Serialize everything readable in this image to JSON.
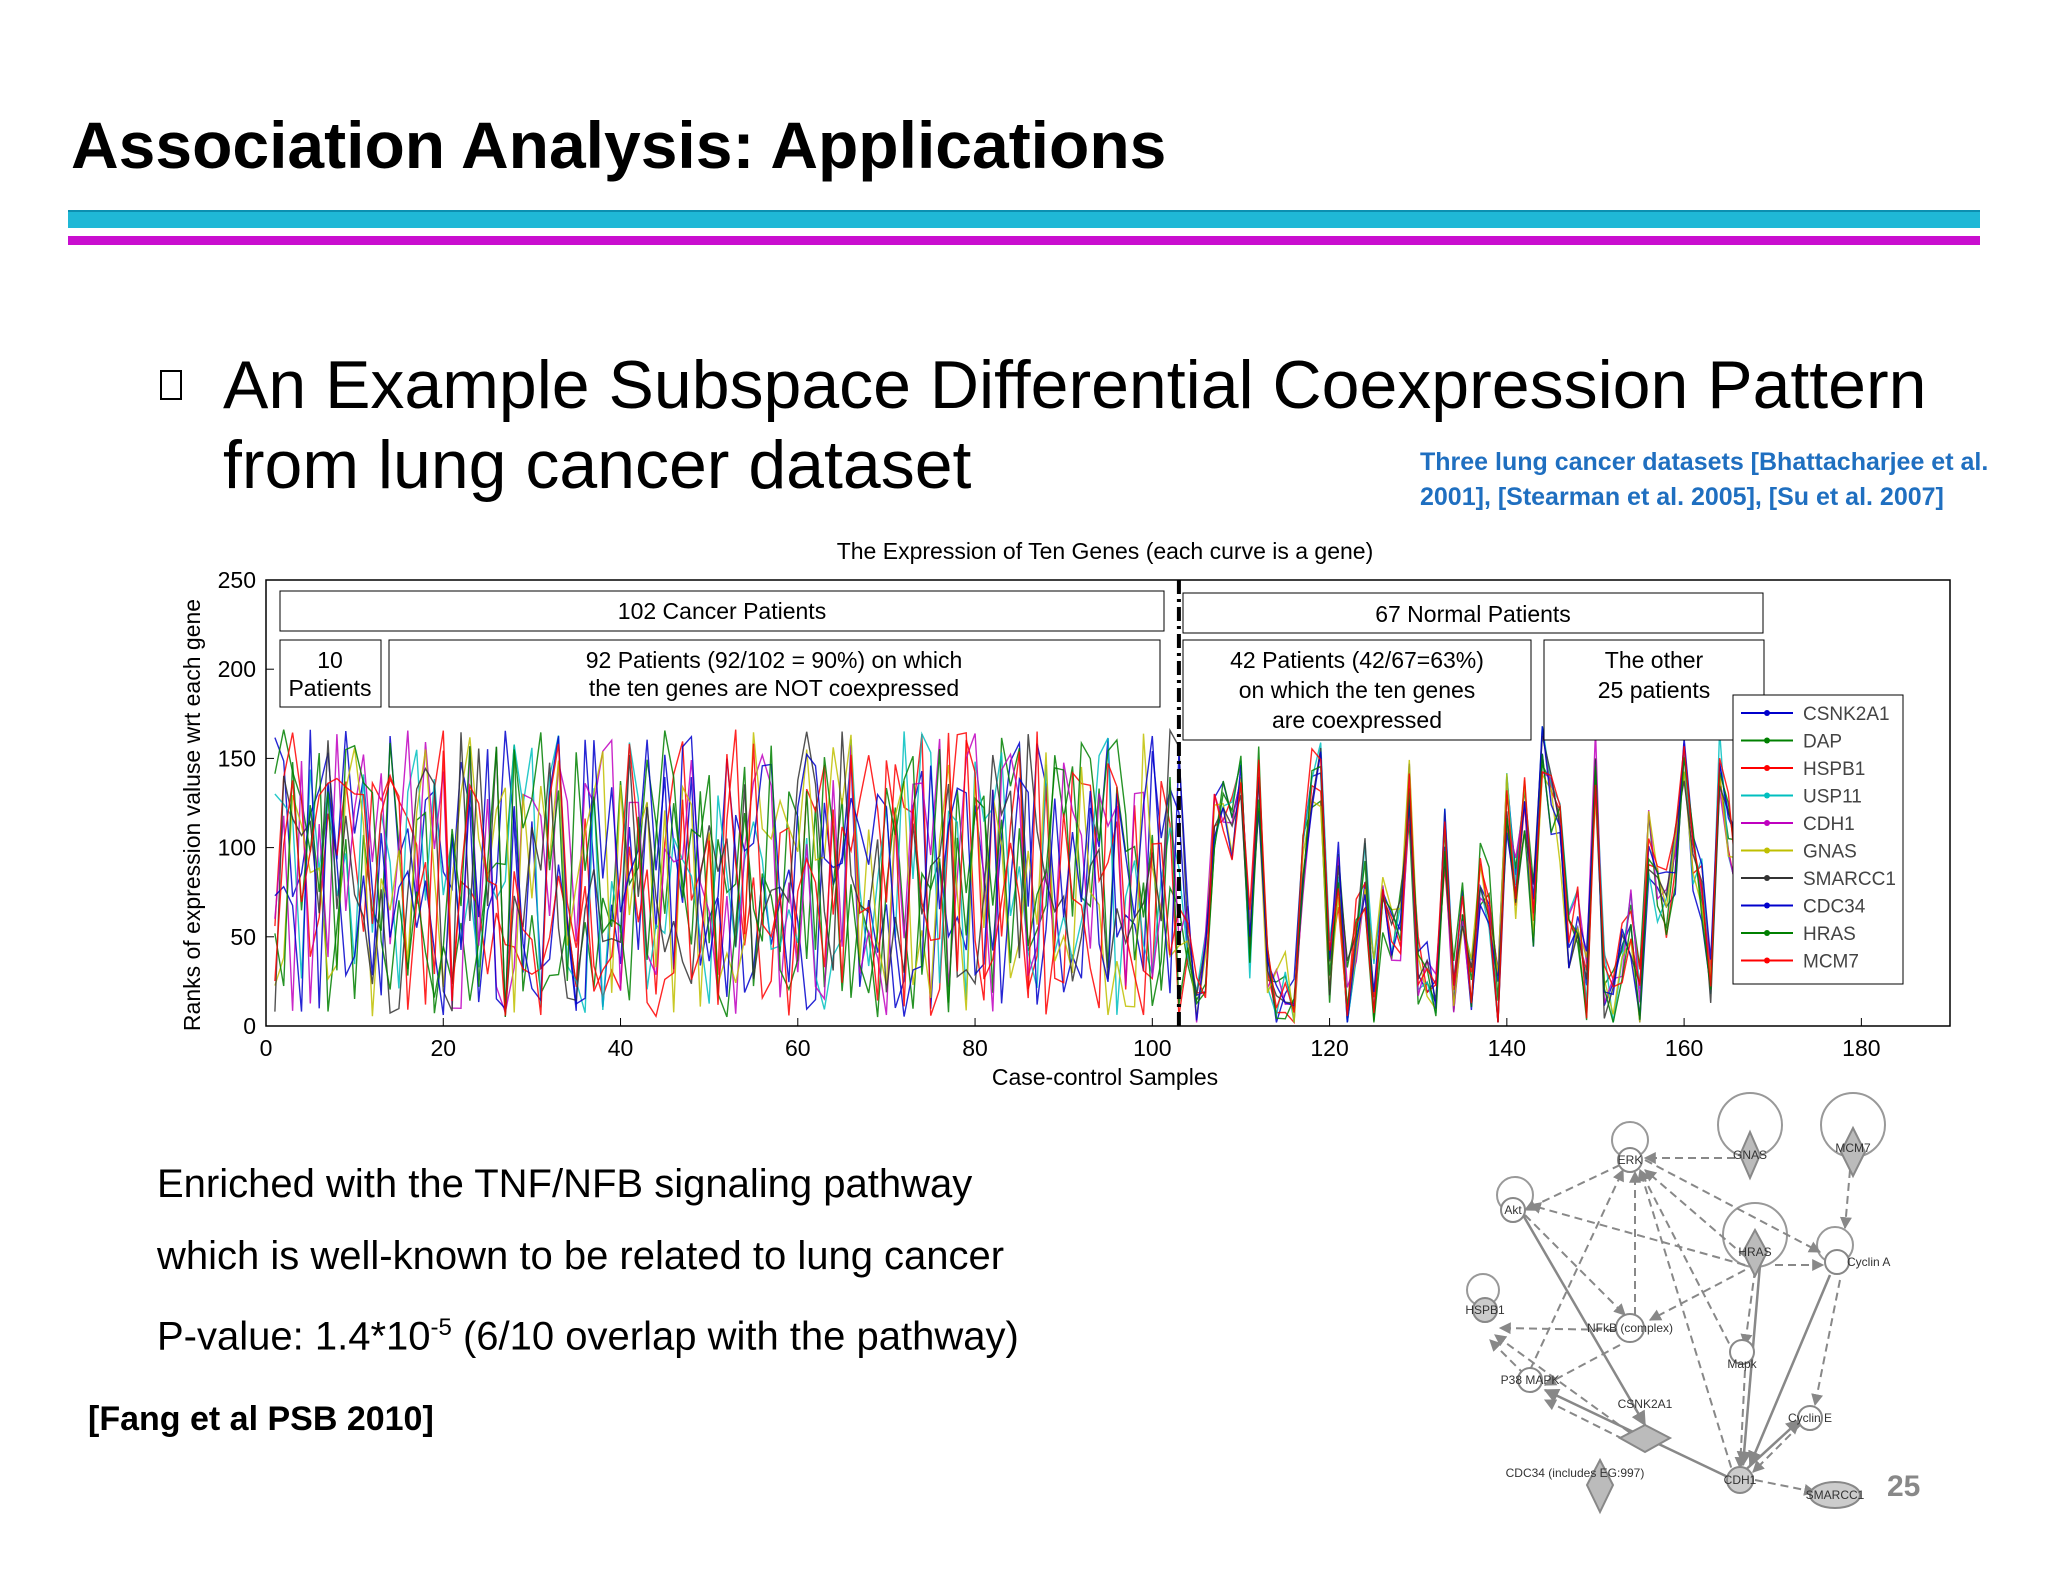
{
  "slide": {
    "title": "Association Analysis: Applications",
    "bullet": "An Example Subspace Differential Coexpression Pattern",
    "bullet_line2": "from lung cancer dataset",
    "cite_top_line1": "Three lung cancer datasets [Bhattacharjee et al.",
    "cite_top_line2": "2001], [Stearman et al. 2005], [Su et al. 2007]",
    "body_line1": "Enriched with the TNF/NFB signaling pathway",
    "body_line2": "which is well-known to be related to lung cancer",
    "body_line3_pre": "P-value: 1.4*10",
    "body_line3_sup": "-5",
    "body_line3_post": " (6/10 overlap with the pathway)",
    "cite_bottom": "[Fang et al PSB 2010]",
    "page_number": "25"
  },
  "chart_data": {
    "type": "line",
    "title": "The Expression of Ten Genes (each curve is a gene)",
    "xlabel": "Case-control Samples",
    "ylabel": "Ranks of expression valuse wrt each gene",
    "xlim": [
      0,
      190
    ],
    "ylim": [
      0,
      250
    ],
    "xticks": [
      0,
      20,
      40,
      60,
      80,
      100,
      120,
      140,
      160,
      180
    ],
    "yticks": [
      0,
      50,
      100,
      150,
      200,
      250
    ],
    "divider_x": 103,
    "legend_position": "right",
    "series": [
      {
        "name": "CSNK2A1",
        "color": "#0000cc"
      },
      {
        "name": "DAP",
        "color": "#008000"
      },
      {
        "name": "HSPB1",
        "color": "#ff0000"
      },
      {
        "name": "USP11",
        "color": "#00bfbf"
      },
      {
        "name": "CDH1",
        "color": "#bf00bf"
      },
      {
        "name": "GNAS",
        "color": "#bfbf00"
      },
      {
        "name": "SMARCC1",
        "color": "#333333"
      },
      {
        "name": "CDC34",
        "color": "#0000cc"
      },
      {
        "name": "HRAS",
        "color": "#008000"
      },
      {
        "name": "MCM7",
        "color": "#ff0000"
      }
    ],
    "annotations": {
      "cancer": "102 Cancer Patients",
      "normal": "67 Normal Patients",
      "ten_a": "10",
      "ten_b": "Patients",
      "p92_a": "92 Patients (92/102 = 90%) on which",
      "p92_b": "the ten genes are NOT coexpressed",
      "p42_a": "42 Patients (42/67=63%)",
      "p42_b": "on which the ten genes",
      "p42_c": "are coexpressed",
      "other_a": "The other",
      "other_b": "25 patients"
    }
  },
  "network": {
    "nodes": {
      "erk": "ERK",
      "gnas": "GNAS",
      "mcm7": "MCM7",
      "akt": "Akt",
      "hras": "HRAS",
      "cyclina": "Cyclin A",
      "hspb1": "HSPB1",
      "nfkb": "NFkB (complex)",
      "mapk": "Mapk",
      "p38": "P38 MAPK",
      "csnk": "CSNK2A1",
      "cycline": "Cyclin E",
      "cdc34": "CDC34 (includes EG:997)",
      "cdh1": "CDH1",
      "smarcc1": "SMARCC1"
    }
  }
}
